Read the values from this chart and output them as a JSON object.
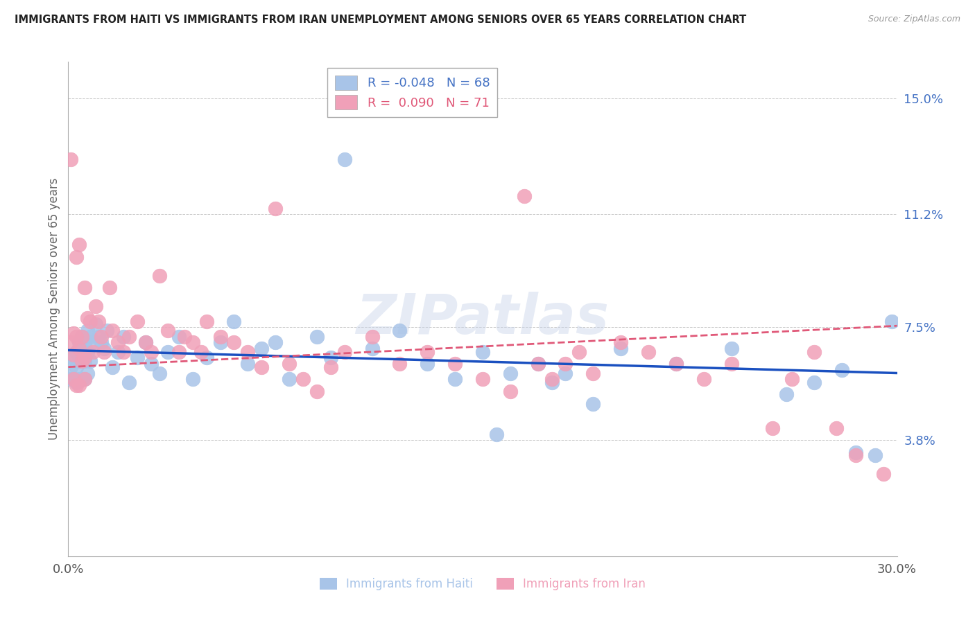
{
  "title": "IMMIGRANTS FROM HAITI VS IMMIGRANTS FROM IRAN UNEMPLOYMENT AMONG SENIORS OVER 65 YEARS CORRELATION CHART",
  "source": "Source: ZipAtlas.com",
  "ylabel": "Unemployment Among Seniors over 65 years",
  "xmin": 0.0,
  "xmax": 0.3,
  "ymin": 0.0,
  "ymax": 0.162,
  "right_yticks": [
    0.038,
    0.075,
    0.112,
    0.15
  ],
  "right_yticklabels": [
    "3.8%",
    "7.5%",
    "11.2%",
    "15.0%"
  ],
  "xtick_positions": [
    0.0,
    0.05,
    0.1,
    0.15,
    0.2,
    0.25,
    0.3
  ],
  "xtick_labels": [
    "0.0%",
    "",
    "",
    "",
    "",
    "",
    "30.0%"
  ],
  "haiti_color": "#a8c4e8",
  "iran_color": "#f0a0b8",
  "haiti_line_color": "#1a50c0",
  "iran_line_color": "#e05878",
  "haiti_R": -0.048,
  "haiti_N": 68,
  "iran_R": 0.09,
  "iran_N": 71,
  "background_color": "#ffffff",
  "grid_color": "#c8c8c8",
  "watermark": "ZIPatlas",
  "haiti_x": [
    0.001,
    0.001,
    0.002,
    0.002,
    0.003,
    0.003,
    0.003,
    0.004,
    0.004,
    0.004,
    0.005,
    0.005,
    0.005,
    0.006,
    0.006,
    0.006,
    0.007,
    0.007,
    0.007,
    0.008,
    0.008,
    0.009,
    0.01,
    0.011,
    0.012,
    0.013,
    0.014,
    0.016,
    0.018,
    0.02,
    0.022,
    0.025,
    0.028,
    0.03,
    0.033,
    0.036,
    0.04,
    0.045,
    0.05,
    0.055,
    0.06,
    0.065,
    0.07,
    0.075,
    0.08,
    0.09,
    0.095,
    0.1,
    0.11,
    0.12,
    0.13,
    0.14,
    0.15,
    0.155,
    0.16,
    0.17,
    0.175,
    0.18,
    0.19,
    0.2,
    0.22,
    0.24,
    0.26,
    0.27,
    0.28,
    0.285,
    0.292,
    0.298
  ],
  "haiti_y": [
    0.062,
    0.058,
    0.065,
    0.058,
    0.067,
    0.062,
    0.057,
    0.07,
    0.064,
    0.058,
    0.072,
    0.066,
    0.058,
    0.07,
    0.064,
    0.058,
    0.074,
    0.067,
    0.06,
    0.072,
    0.064,
    0.07,
    0.076,
    0.072,
    0.07,
    0.068,
    0.074,
    0.062,
    0.067,
    0.072,
    0.057,
    0.065,
    0.07,
    0.063,
    0.06,
    0.067,
    0.072,
    0.058,
    0.065,
    0.07,
    0.077,
    0.063,
    0.068,
    0.07,
    0.058,
    0.072,
    0.065,
    0.13,
    0.068,
    0.074,
    0.063,
    0.058,
    0.067,
    0.04,
    0.06,
    0.063,
    0.057,
    0.06,
    0.05,
    0.068,
    0.063,
    0.068,
    0.053,
    0.057,
    0.061,
    0.034,
    0.033,
    0.077
  ],
  "iran_x": [
    0.001,
    0.001,
    0.002,
    0.002,
    0.002,
    0.003,
    0.003,
    0.003,
    0.004,
    0.004,
    0.004,
    0.005,
    0.005,
    0.006,
    0.006,
    0.006,
    0.007,
    0.008,
    0.009,
    0.01,
    0.011,
    0.012,
    0.013,
    0.015,
    0.016,
    0.018,
    0.02,
    0.022,
    0.025,
    0.028,
    0.03,
    0.033,
    0.036,
    0.04,
    0.042,
    0.045,
    0.048,
    0.05,
    0.055,
    0.06,
    0.065,
    0.07,
    0.075,
    0.08,
    0.085,
    0.09,
    0.095,
    0.1,
    0.11,
    0.12,
    0.13,
    0.14,
    0.15,
    0.16,
    0.165,
    0.17,
    0.175,
    0.18,
    0.185,
    0.19,
    0.2,
    0.21,
    0.22,
    0.23,
    0.24,
    0.255,
    0.262,
    0.27,
    0.278,
    0.285,
    0.295
  ],
  "iran_y": [
    0.13,
    0.07,
    0.073,
    0.066,
    0.058,
    0.098,
    0.072,
    0.056,
    0.102,
    0.068,
    0.056,
    0.072,
    0.064,
    0.088,
    0.065,
    0.058,
    0.078,
    0.077,
    0.067,
    0.082,
    0.077,
    0.072,
    0.067,
    0.088,
    0.074,
    0.07,
    0.067,
    0.072,
    0.077,
    0.07,
    0.067,
    0.092,
    0.074,
    0.067,
    0.072,
    0.07,
    0.067,
    0.077,
    0.072,
    0.07,
    0.067,
    0.062,
    0.114,
    0.063,
    0.058,
    0.054,
    0.062,
    0.067,
    0.072,
    0.063,
    0.067,
    0.063,
    0.058,
    0.054,
    0.118,
    0.063,
    0.058,
    0.063,
    0.067,
    0.06,
    0.07,
    0.067,
    0.063,
    0.058,
    0.063,
    0.042,
    0.058,
    0.067,
    0.042,
    0.033,
    0.027
  ]
}
